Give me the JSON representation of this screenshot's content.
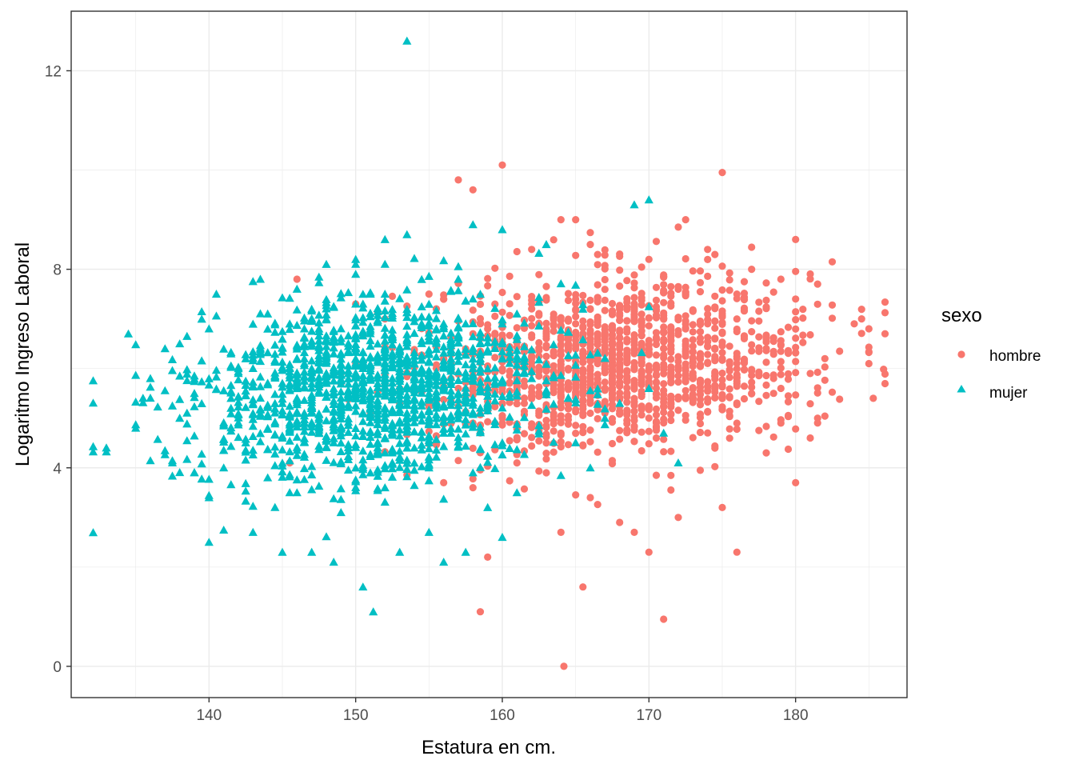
{
  "chart_data": {
    "type": "scatter",
    "xlabel": "Estatura en cm.",
    "ylabel": "Logaritmo Ingreso Laboral",
    "xlim": [
      130.6,
      187.6
    ],
    "ylim": [
      -0.63,
      13.2
    ],
    "x_ticks": [
      140,
      150,
      160,
      170,
      180
    ],
    "y_ticks": [
      0,
      4,
      8,
      12
    ],
    "x_tick_labels": [
      "140",
      "150",
      "160",
      "170",
      "180"
    ],
    "y_tick_labels": [
      "0",
      "4",
      "8",
      "12"
    ],
    "grid": true,
    "legend_position": "right",
    "legend_title": "sexo",
    "series": [
      {
        "name": "hombre",
        "marker": "circle",
        "color": "#F8766D",
        "summary": {
          "x_mean": 168,
          "x_sd": 6.5,
          "y_mean": 6.1,
          "y_sd": 0.9,
          "n_approx": 1400
        },
        "points": [
          [
            160.0,
            10.1
          ],
          [
            175.0,
            9.95
          ],
          [
            157.0,
            9.8
          ],
          [
            158.0,
            9.6
          ],
          [
            164.0,
            9.0
          ],
          [
            165.0,
            9.0
          ],
          [
            172.0,
            8.85
          ],
          [
            180.0,
            8.6
          ],
          [
            182.5,
            8.15
          ],
          [
            184.0,
            6.9
          ],
          [
            185.0,
            6.8
          ],
          [
            184.5,
            7.0
          ],
          [
            185.3,
            5.4
          ],
          [
            185.0,
            6.1
          ],
          [
            183.0,
            6.35
          ],
          [
            182.0,
            6.2
          ],
          [
            181.0,
            5.9
          ],
          [
            181.5,
            5.0
          ],
          [
            181.0,
            4.6
          ],
          [
            180.0,
            3.7
          ],
          [
            178.0,
            4.3
          ],
          [
            178.5,
            5.5
          ],
          [
            176.0,
            2.3
          ],
          [
            175.0,
            3.2
          ],
          [
            172.0,
            3.0
          ],
          [
            171.0,
            0.95
          ],
          [
            170.0,
            2.3
          ],
          [
            169.0,
            2.7
          ],
          [
            168.0,
            2.9
          ],
          [
            166.0,
            3.4
          ],
          [
            165.5,
            1.6
          ],
          [
            164.2,
            0.0
          ],
          [
            164.0,
            2.7
          ],
          [
            159.0,
            2.2
          ],
          [
            158.5,
            1.1
          ],
          [
            158.0,
            3.6
          ],
          [
            156.0,
            3.7
          ],
          [
            155.0,
            4.9
          ],
          [
            153.0,
            5.6
          ],
          [
            154.0,
            6.3
          ],
          [
            155.0,
            7.5
          ],
          [
            156.0,
            7.4
          ],
          [
            150.0,
            6.1
          ],
          [
            151.0,
            5.1
          ],
          [
            152.0,
            7.0
          ],
          [
            146.0,
            7.8
          ],
          [
            147.5,
            4.7
          ],
          [
            145.5,
            4.1
          ],
          [
            150.0,
            7.3
          ],
          [
            149.0,
            5.9
          ],
          [
            157.0,
            5.6
          ],
          [
            158.0,
            4.9
          ],
          [
            159.0,
            6.8
          ],
          [
            160.0,
            5.3
          ],
          [
            161.0,
            4.1
          ],
          [
            162.0,
            7.3
          ],
          [
            163.0,
            3.9
          ],
          [
            166.0,
            5.1
          ],
          [
            167.0,
            6.3
          ],
          [
            168.0,
            6.5
          ],
          [
            169.0,
            7.2
          ],
          [
            170.0,
            5.6
          ],
          [
            171.0,
            6.4
          ],
          [
            172.0,
            7.0
          ],
          [
            173.0,
            5.8
          ],
          [
            174.0,
            6.9
          ],
          [
            175.0,
            6.2
          ],
          [
            176.0,
            7.5
          ],
          [
            177.0,
            5.5
          ],
          [
            178.0,
            6.6
          ],
          [
            179.0,
            4.9
          ],
          [
            180.0,
            7.4
          ],
          [
            162.0,
            8.4
          ],
          [
            166.0,
            8.5
          ],
          [
            170.0,
            8.2
          ],
          [
            174.0,
            8.4
          ],
          [
            177.0,
            8.0
          ],
          [
            179.0,
            7.8
          ]
        ]
      },
      {
        "name": "mujer",
        "marker": "triangle",
        "color": "#00BFC4",
        "summary": {
          "x_mean": 151,
          "x_sd": 6.0,
          "y_mean": 5.6,
          "y_sd": 0.95,
          "n_approx": 1400
        },
        "points": [
          [
            153.5,
            12.6
          ],
          [
            170.0,
            9.4
          ],
          [
            169.0,
            9.3
          ],
          [
            158.0,
            8.9
          ],
          [
            160.0,
            8.8
          ],
          [
            163.0,
            8.5
          ],
          [
            153.5,
            8.7
          ],
          [
            152.0,
            8.6
          ],
          [
            150.0,
            8.2
          ],
          [
            148.0,
            8.1
          ],
          [
            143.5,
            7.8
          ],
          [
            140.5,
            7.5
          ],
          [
            138.0,
            6.5
          ],
          [
            137.0,
            6.4
          ],
          [
            136.0,
            5.8
          ],
          [
            135.0,
            4.8
          ],
          [
            133.0,
            4.4
          ],
          [
            137.5,
            4.1
          ],
          [
            139.0,
            3.9
          ],
          [
            140.0,
            3.4
          ],
          [
            140.0,
            2.5
          ],
          [
            143.0,
            2.7
          ],
          [
            145.0,
            2.3
          ],
          [
            147.0,
            2.3
          ],
          [
            148.5,
            2.1
          ],
          [
            150.5,
            1.6
          ],
          [
            151.2,
            1.1
          ],
          [
            153.0,
            2.3
          ],
          [
            155.0,
            2.7
          ],
          [
            156.0,
            2.1
          ],
          [
            157.5,
            2.3
          ],
          [
            159.0,
            3.2
          ],
          [
            160.0,
            2.6
          ],
          [
            164.5,
            5.4
          ],
          [
            168.0,
            5.3
          ],
          [
            171.0,
            4.7
          ],
          [
            172.0,
            4.1
          ],
          [
            166.0,
            4.0
          ],
          [
            167.0,
            5.0
          ],
          [
            162.0,
            5.8
          ],
          [
            161.0,
            7.1
          ],
          [
            160.0,
            6.5
          ],
          [
            158.0,
            6.0
          ],
          [
            157.0,
            7.8
          ],
          [
            156.0,
            6.9
          ],
          [
            155.0,
            5.5
          ],
          [
            154.0,
            4.4
          ],
          [
            153.0,
            6.0
          ],
          [
            152.0,
            7.5
          ],
          [
            151.0,
            5.2
          ],
          [
            150.0,
            6.6
          ],
          [
            149.0,
            4.5
          ],
          [
            148.0,
            7.0
          ],
          [
            147.0,
            5.8
          ],
          [
            146.0,
            6.2
          ],
          [
            145.0,
            4.6
          ],
          [
            144.0,
            7.1
          ],
          [
            143.0,
            5.3
          ],
          [
            142.0,
            6.0
          ],
          [
            141.0,
            4.0
          ],
          [
            140.0,
            6.8
          ],
          [
            139.0,
            5.5
          ],
          [
            138.0,
            5.0
          ],
          [
            144.0,
            3.8
          ],
          [
            146.0,
            3.5
          ],
          [
            149.0,
            3.1
          ],
          [
            152.0,
            3.6
          ],
          [
            155.0,
            4.0
          ],
          [
            158.0,
            3.9
          ],
          [
            161.0,
            3.5
          ],
          [
            150.0,
            7.9
          ],
          [
            146.0,
            7.6
          ]
        ]
      }
    ]
  }
}
